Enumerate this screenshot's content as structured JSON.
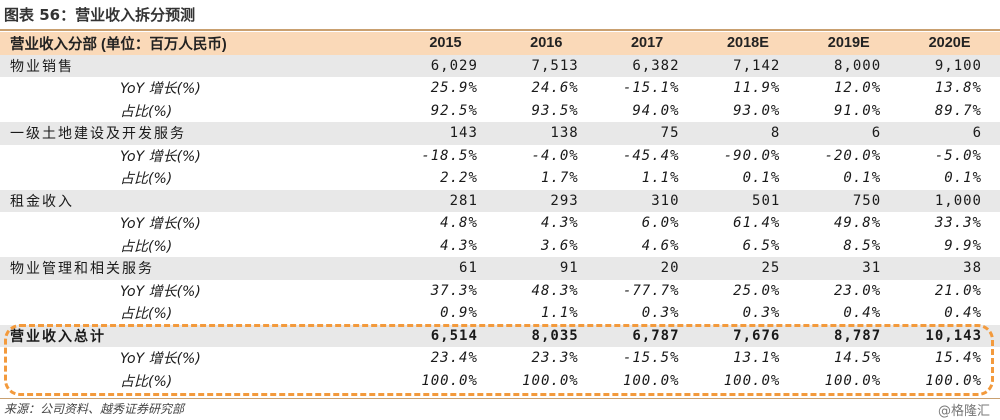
{
  "title": "图表 56：营业收入拆分预测",
  "header": {
    "label": "营业收入分部 (单位：百万人民币)",
    "years": [
      "2015",
      "2016",
      "2017",
      "2018E",
      "2019E",
      "2020E"
    ]
  },
  "rows": [
    {
      "type": "main",
      "label": "物业销售",
      "values": [
        "6,029",
        "7,513",
        "6,382",
        "7,142",
        "8,000",
        "9,100"
      ]
    },
    {
      "type": "sub",
      "label": "YoY 增长(%)",
      "values": [
        "25.9%",
        "24.6%",
        "-15.1%",
        "11.9%",
        "12.0%",
        "13.8%"
      ]
    },
    {
      "type": "sub",
      "label": "占比(%)",
      "values": [
        "92.5%",
        "93.5%",
        "94.0%",
        "93.0%",
        "91.0%",
        "89.7%"
      ]
    },
    {
      "type": "main",
      "label": "一级土地建设及开发服务",
      "values": [
        "143",
        "138",
        "75",
        "8",
        "6",
        "6"
      ]
    },
    {
      "type": "sub",
      "label": "YoY 增长(%)",
      "values": [
        "-18.5%",
        "-4.0%",
        "-45.4%",
        "-90.0%",
        "-20.0%",
        "-5.0%"
      ]
    },
    {
      "type": "sub",
      "label": "占比(%)",
      "values": [
        "2.2%",
        "1.7%",
        "1.1%",
        "0.1%",
        "0.1%",
        "0.1%"
      ]
    },
    {
      "type": "main",
      "label": "租金收入",
      "values": [
        "281",
        "293",
        "310",
        "501",
        "750",
        "1,000"
      ]
    },
    {
      "type": "sub",
      "label": "YoY 增长(%)",
      "values": [
        "4.8%",
        "4.3%",
        "6.0%",
        "61.4%",
        "49.8%",
        "33.3%"
      ]
    },
    {
      "type": "sub",
      "label": "占比(%)",
      "values": [
        "4.3%",
        "3.6%",
        "4.6%",
        "6.5%",
        "8.5%",
        "9.9%"
      ]
    },
    {
      "type": "main",
      "label": "物业管理和相关服务",
      "values": [
        "61",
        "91",
        "20",
        "25",
        "31",
        "38"
      ]
    },
    {
      "type": "sub",
      "label": "YoY 增长(%)",
      "values": [
        "37.3%",
        "48.3%",
        "-77.7%",
        "25.0%",
        "23.0%",
        "21.0%"
      ]
    },
    {
      "type": "sub",
      "label": "占比(%)",
      "values": [
        "0.9%",
        "1.1%",
        "0.3%",
        "0.3%",
        "0.4%",
        "0.4%"
      ]
    },
    {
      "type": "main",
      "bold": true,
      "label": "营业收入总计",
      "values": [
        "6,514",
        "8,035",
        "6,787",
        "7,676",
        "8,787",
        "10,143"
      ]
    },
    {
      "type": "sub",
      "label": "YoY 增长(%)",
      "values": [
        "23.4%",
        "23.3%",
        "-15.5%",
        "13.1%",
        "14.5%",
        "15.4%"
      ]
    },
    {
      "type": "sub",
      "label": "占比(%)",
      "values": [
        "100.0%",
        "100.0%",
        "100.0%",
        "100.0%",
        "100.0%",
        "100.0%"
      ]
    }
  ],
  "source": "来源：公司资料、越秀证券研究部",
  "watermark": "@格隆汇",
  "colors": {
    "header_bg": "#fad9b8",
    "main_row_bg": "#e8e8e8",
    "highlight_border": "#f39a3c"
  }
}
